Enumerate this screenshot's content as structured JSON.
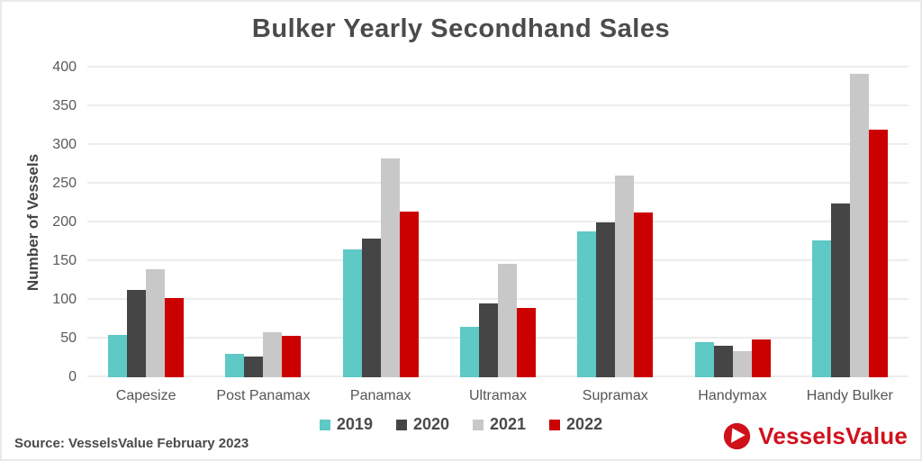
{
  "title": "Bulker Yearly Secondhand Sales",
  "source": "Source: VesselsValue February 2023",
  "logo_text": "VesselsValue",
  "colors": {
    "series_2019": "#5ec9c5",
    "series_2020": "#454545",
    "series_2021": "#c8c8c8",
    "series_2022": "#cb0000",
    "logo_red": "#d0111c",
    "text_dark": "#4b4b4b",
    "axis_text": "#595959",
    "gridline": "#ececec",
    "background": "#ffffff",
    "frame_border": "#e9e9e9"
  },
  "chart_data": {
    "type": "bar",
    "title": "Bulker Yearly Secondhand Sales",
    "xlabel": "",
    "ylabel": "Number of Vessels",
    "ylim": [
      0,
      400
    ],
    "ytick_step": 50,
    "grid": true,
    "legend_position": "bottom",
    "categories": [
      "Capesize",
      "Post Panamax",
      "Panamax",
      "Ultramax",
      "Supramax",
      "Handymax",
      "Handy Bulker"
    ],
    "series": [
      {
        "name": "2019",
        "color": "#5ec9c5",
        "values": [
          55,
          30,
          165,
          65,
          188,
          45,
          177
        ]
      },
      {
        "name": "2020",
        "color": "#454545",
        "values": [
          113,
          27,
          179,
          95,
          200,
          41,
          225
        ]
      },
      {
        "name": "2021",
        "color": "#c8c8c8",
        "values": [
          139,
          58,
          283,
          147,
          260,
          34,
          392
        ]
      },
      {
        "name": "2022",
        "color": "#cb0000",
        "values": [
          102,
          54,
          214,
          90,
          213,
          49,
          320
        ]
      }
    ]
  }
}
